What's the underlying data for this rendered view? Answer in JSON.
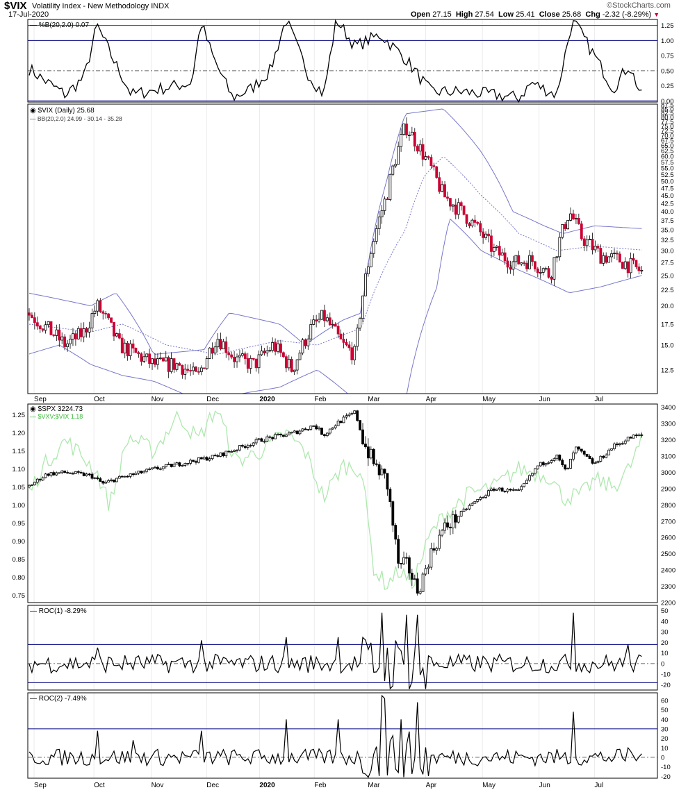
{
  "header": {
    "symbol": "$VIX",
    "name": "Volatility Index - New Methodology  INDX",
    "date": "17-Jul-2020",
    "open_label": "Open",
    "open": "27.15",
    "high_label": "High",
    "high": "27.54",
    "low_label": "Low",
    "low": "25.41",
    "close_label": "Close",
    "close": "25.68",
    "chg_label": "Chg",
    "chg": "-2.32 (-8.29%)",
    "watermark": "©StockCharts.com"
  },
  "colors": {
    "down": "#cc0033",
    "up": "#000000",
    "band": "#7777cc",
    "ratio": "#aee8ae",
    "redline": "#cc0000",
    "navyline": "#000080"
  },
  "chart_data": [
    {
      "type": "line",
      "label": "%B(20,2.0) 0.07",
      "ylim": [
        -0.02,
        1.35
      ],
      "ticks": [
        "1.25",
        "1.00",
        "0.75",
        "0.50",
        "0.25",
        "0.00"
      ],
      "tick_values": [
        1.25,
        1.0,
        0.75,
        0.5,
        0.25,
        0.0
      ],
      "reference_lines": [
        1.25,
        1.0,
        0.5,
        0.0
      ],
      "key_points": [
        [
          0,
          0.55
        ],
        [
          0.025,
          0.35
        ],
        [
          0.06,
          0.1
        ],
        [
          0.09,
          0.4
        ],
        [
          0.11,
          1.25
        ],
        [
          0.135,
          0.7
        ],
        [
          0.165,
          0.1
        ],
        [
          0.21,
          0.2
        ],
        [
          0.26,
          0.3
        ],
        [
          0.275,
          1.3
        ],
        [
          0.295,
          0.7
        ],
        [
          0.325,
          0.05
        ],
        [
          0.355,
          0.2
        ],
        [
          0.385,
          0.5
        ],
        [
          0.41,
          1.35
        ],
        [
          0.445,
          0.45
        ],
        [
          0.47,
          0.1
        ],
        [
          0.49,
          1.35
        ],
        [
          0.52,
          0.9
        ],
        [
          0.56,
          1.1
        ],
        [
          0.6,
          0.7
        ],
        [
          0.64,
          0.15
        ],
        [
          0.69,
          0.15
        ],
        [
          0.74,
          0.1
        ],
        [
          0.78,
          0.05
        ],
        [
          0.8,
          0.3
        ],
        [
          0.84,
          0.1
        ],
        [
          0.865,
          1.35
        ],
        [
          0.9,
          0.75
        ],
        [
          0.93,
          0.2
        ],
        [
          0.955,
          0.6
        ],
        [
          0.975,
          0.07
        ]
      ]
    },
    {
      "type": "candlestick",
      "label": "$VIX (Daily) 25.68",
      "bands_label": "BB(20,2.0) 24.99 - 30.14 - 35.28",
      "scale": "log",
      "ylim": [
        10.5,
        88
      ],
      "ticks": [
        "87.5",
        "85.0",
        "82.5",
        "80.0",
        "77.5",
        "75.0",
        "72.5",
        "70.0",
        "67.5",
        "65.0",
        "62.5",
        "60.0",
        "57.5",
        "55.0",
        "52.5",
        "50.0",
        "47.5",
        "45.0",
        "42.5",
        "40.0",
        "37.5",
        "35.0",
        "32.5",
        "30.0",
        "27.5",
        "25.0",
        "22.5",
        "20.0",
        "17.5",
        "15.0",
        "12.5"
      ],
      "tick_values": [
        87.5,
        85,
        82.5,
        80,
        77.5,
        75,
        72.5,
        70,
        67.5,
        65,
        62.5,
        60,
        57.5,
        55,
        52.5,
        50,
        47.5,
        45,
        42.5,
        40,
        37.5,
        35,
        32.5,
        30,
        27.5,
        25,
        22.5,
        20,
        17.5,
        15,
        12.5
      ],
      "close_key_points": [
        [
          0,
          19
        ],
        [
          0.03,
          17
        ],
        [
          0.06,
          15
        ],
        [
          0.09,
          16.5
        ],
        [
          0.11,
          20
        ],
        [
          0.125,
          18
        ],
        [
          0.145,
          15
        ],
        [
          0.2,
          13
        ],
        [
          0.24,
          13
        ],
        [
          0.27,
          11.8
        ],
        [
          0.3,
          16
        ],
        [
          0.33,
          13.5
        ],
        [
          0.36,
          13
        ],
        [
          0.39,
          15
        ],
        [
          0.42,
          12.5
        ],
        [
          0.45,
          17
        ],
        [
          0.47,
          18.5
        ],
        [
          0.5,
          15
        ],
        [
          0.52,
          14
        ],
        [
          0.545,
          30
        ],
        [
          0.57,
          45
        ],
        [
          0.6,
          75
        ],
        [
          0.62,
          65
        ],
        [
          0.66,
          45
        ],
        [
          0.7,
          38
        ],
        [
          0.74,
          30
        ],
        [
          0.77,
          27.5
        ],
        [
          0.8,
          28
        ],
        [
          0.83,
          25
        ],
        [
          0.86,
          40
        ],
        [
          0.88,
          33
        ],
        [
          0.91,
          29
        ],
        [
          0.94,
          28
        ],
        [
          0.975,
          25.68
        ]
      ],
      "upper_band_key_points": [
        [
          0,
          22
        ],
        [
          0.05,
          21
        ],
        [
          0.1,
          20
        ],
        [
          0.14,
          22
        ],
        [
          0.2,
          14
        ],
        [
          0.28,
          14.5
        ],
        [
          0.32,
          19
        ],
        [
          0.4,
          17.5
        ],
        [
          0.44,
          15
        ],
        [
          0.5,
          18
        ],
        [
          0.53,
          19
        ],
        [
          0.57,
          50
        ],
        [
          0.6,
          82
        ],
        [
          0.66,
          85
        ],
        [
          0.72,
          62
        ],
        [
          0.77,
          40
        ],
        [
          0.82,
          36
        ],
        [
          0.85,
          34
        ],
        [
          0.9,
          36
        ],
        [
          0.975,
          35.28
        ]
      ],
      "middle_band_key_points": [
        [
          0,
          17.5
        ],
        [
          0.1,
          16.5
        ],
        [
          0.15,
          17.5
        ],
        [
          0.22,
          15
        ],
        [
          0.3,
          14
        ],
        [
          0.4,
          15.5
        ],
        [
          0.46,
          15
        ],
        [
          0.53,
          17
        ],
        [
          0.6,
          35
        ],
        [
          0.63,
          52
        ],
        [
          0.66,
          60
        ],
        [
          0.72,
          45
        ],
        [
          0.78,
          34
        ],
        [
          0.84,
          30
        ],
        [
          0.9,
          31
        ],
        [
          0.975,
          30.14
        ]
      ],
      "lower_band_key_points": [
        [
          0,
          14
        ],
        [
          0.05,
          15
        ],
        [
          0.1,
          13
        ],
        [
          0.15,
          12
        ],
        [
          0.2,
          11.5
        ],
        [
          0.26,
          10.2
        ],
        [
          0.34,
          10.5
        ],
        [
          0.4,
          11
        ],
        [
          0.46,
          12.5
        ],
        [
          0.52,
          10
        ],
        [
          0.56,
          9
        ],
        [
          0.6,
          10
        ],
        [
          0.65,
          23
        ],
        [
          0.67,
          38
        ],
        [
          0.72,
          30
        ],
        [
          0.78,
          26
        ],
        [
          0.83,
          23.5
        ],
        [
          0.86,
          22
        ],
        [
          0.91,
          23
        ],
        [
          0.975,
          24.99
        ]
      ]
    },
    {
      "type": "candlestick",
      "label": "$SPX 3224.73",
      "ratio_label": "$VXV:$VIX 1.18",
      "ylim": [
        2200,
        3420
      ],
      "right_ticks": [
        "3400",
        "3300",
        "3200",
        "3100",
        "3000",
        "2900",
        "2800",
        "2700",
        "2600",
        "2500",
        "2400",
        "2300",
        "2200"
      ],
      "right_tick_values": [
        3400,
        3300,
        3200,
        3100,
        3000,
        2900,
        2800,
        2700,
        2600,
        2500,
        2400,
        2300,
        2200
      ],
      "left_ylim": [
        0.73,
        1.28
      ],
      "left_ticks": [
        "1.25",
        "1.20",
        "1.15",
        "1.10",
        "1.05",
        "1.00",
        "0.95",
        "0.90",
        "0.85",
        "0.80",
        "0.75"
      ],
      "left_tick_values": [
        1.25,
        1.2,
        1.15,
        1.1,
        1.05,
        1.0,
        0.95,
        0.9,
        0.85,
        0.8,
        0.75
      ],
      "spx_key_points": [
        [
          0,
          2910
        ],
        [
          0.03,
          2990
        ],
        [
          0.06,
          3000
        ],
        [
          0.1,
          2980
        ],
        [
          0.12,
          2930
        ],
        [
          0.14,
          2960
        ],
        [
          0.2,
          3020
        ],
        [
          0.3,
          3100
        ],
        [
          0.37,
          3200
        ],
        [
          0.42,
          3240
        ],
        [
          0.455,
          3290
        ],
        [
          0.47,
          3230
        ],
        [
          0.49,
          3300
        ],
        [
          0.52,
          3370
        ],
        [
          0.535,
          3170
        ],
        [
          0.55,
          3050
        ],
        [
          0.57,
          2950
        ],
        [
          0.59,
          2400
        ],
        [
          0.6,
          2450
        ],
        [
          0.62,
          2270
        ],
        [
          0.64,
          2500
        ],
        [
          0.66,
          2650
        ],
        [
          0.7,
          2790
        ],
        [
          0.74,
          2900
        ],
        [
          0.78,
          2880
        ],
        [
          0.81,
          3040
        ],
        [
          0.84,
          3100
        ],
        [
          0.855,
          3000
        ],
        [
          0.87,
          3150
        ],
        [
          0.9,
          3050
        ],
        [
          0.93,
          3160
        ],
        [
          0.96,
          3220
        ],
        [
          0.975,
          3224.73
        ]
      ],
      "ratio_key_points": [
        [
          0,
          1.03
        ],
        [
          0.03,
          1.12
        ],
        [
          0.06,
          1.18
        ],
        [
          0.09,
          1.13
        ],
        [
          0.11,
          1.09
        ],
        [
          0.13,
          1.0
        ],
        [
          0.16,
          1.19
        ],
        [
          0.2,
          1.15
        ],
        [
          0.24,
          1.25
        ],
        [
          0.27,
          1.18
        ],
        [
          0.3,
          1.27
        ],
        [
          0.33,
          1.12
        ],
        [
          0.37,
          1.15
        ],
        [
          0.41,
          1.2
        ],
        [
          0.44,
          1.15
        ],
        [
          0.47,
          1.02
        ],
        [
          0.5,
          1.11
        ],
        [
          0.53,
          1.1
        ],
        [
          0.55,
          0.82
        ],
        [
          0.57,
          0.78
        ],
        [
          0.59,
          0.82
        ],
        [
          0.61,
          0.78
        ],
        [
          0.64,
          0.92
        ],
        [
          0.66,
          0.97
        ],
        [
          0.7,
          1.03
        ],
        [
          0.74,
          1.05
        ],
        [
          0.78,
          1.1
        ],
        [
          0.83,
          1.08
        ],
        [
          0.85,
          1.02
        ],
        [
          0.88,
          1.03
        ],
        [
          0.9,
          1.07
        ],
        [
          0.93,
          1.05
        ],
        [
          0.955,
          1.1
        ],
        [
          0.975,
          1.18
        ]
      ]
    },
    {
      "type": "line",
      "label": "ROC(1) -8.29%",
      "ylim": [
        -25,
        55
      ],
      "ticks": [
        "50",
        "40",
        "30",
        "20",
        "10",
        "0",
        "-10",
        "-20"
      ],
      "tick_values": [
        50,
        40,
        30,
        20,
        10,
        0,
        -10,
        -20
      ],
      "reference_lines": [
        18,
        0,
        -18
      ],
      "spikes": [
        [
          0.11,
          15
        ],
        [
          0.275,
          22
        ],
        [
          0.41,
          25
        ],
        [
          0.49,
          25
        ],
        [
          0.56,
          48
        ],
        [
          0.6,
          46
        ],
        [
          0.62,
          46
        ],
        [
          0.63,
          -25
        ],
        [
          0.865,
          48
        ],
        [
          0.955,
          18
        ]
      ]
    },
    {
      "type": "line",
      "label": "ROC(2) -7.49%",
      "ylim": [
        -22,
        68
      ],
      "ticks": [
        "60",
        "50",
        "40",
        "30",
        "20",
        "10",
        "0",
        "-10",
        "-20"
      ],
      "tick_values": [
        60,
        50,
        40,
        30,
        20,
        10,
        0,
        -10,
        -20
      ],
      "reference_lines": [
        30,
        0
      ],
      "spikes": [
        [
          0.11,
          28
        ],
        [
          0.165,
          18
        ],
        [
          0.275,
          28
        ],
        [
          0.41,
          40
        ],
        [
          0.49,
          40
        ],
        [
          0.56,
          65
        ],
        [
          0.565,
          62
        ],
        [
          0.59,
          40
        ],
        [
          0.62,
          58
        ],
        [
          0.625,
          -18
        ],
        [
          0.865,
          48
        ],
        [
          0.955,
          10
        ]
      ]
    }
  ],
  "x_axis": {
    "labels": [
      "Sep",
      "Oct",
      "Nov",
      "Dec",
      "2020",
      "Feb",
      "Mar",
      "Apr",
      "May",
      "Jun",
      "Jul"
    ],
    "positions": [
      0.01,
      0.105,
      0.196,
      0.284,
      0.368,
      0.455,
      0.54,
      0.632,
      0.722,
      0.812,
      0.9
    ]
  }
}
